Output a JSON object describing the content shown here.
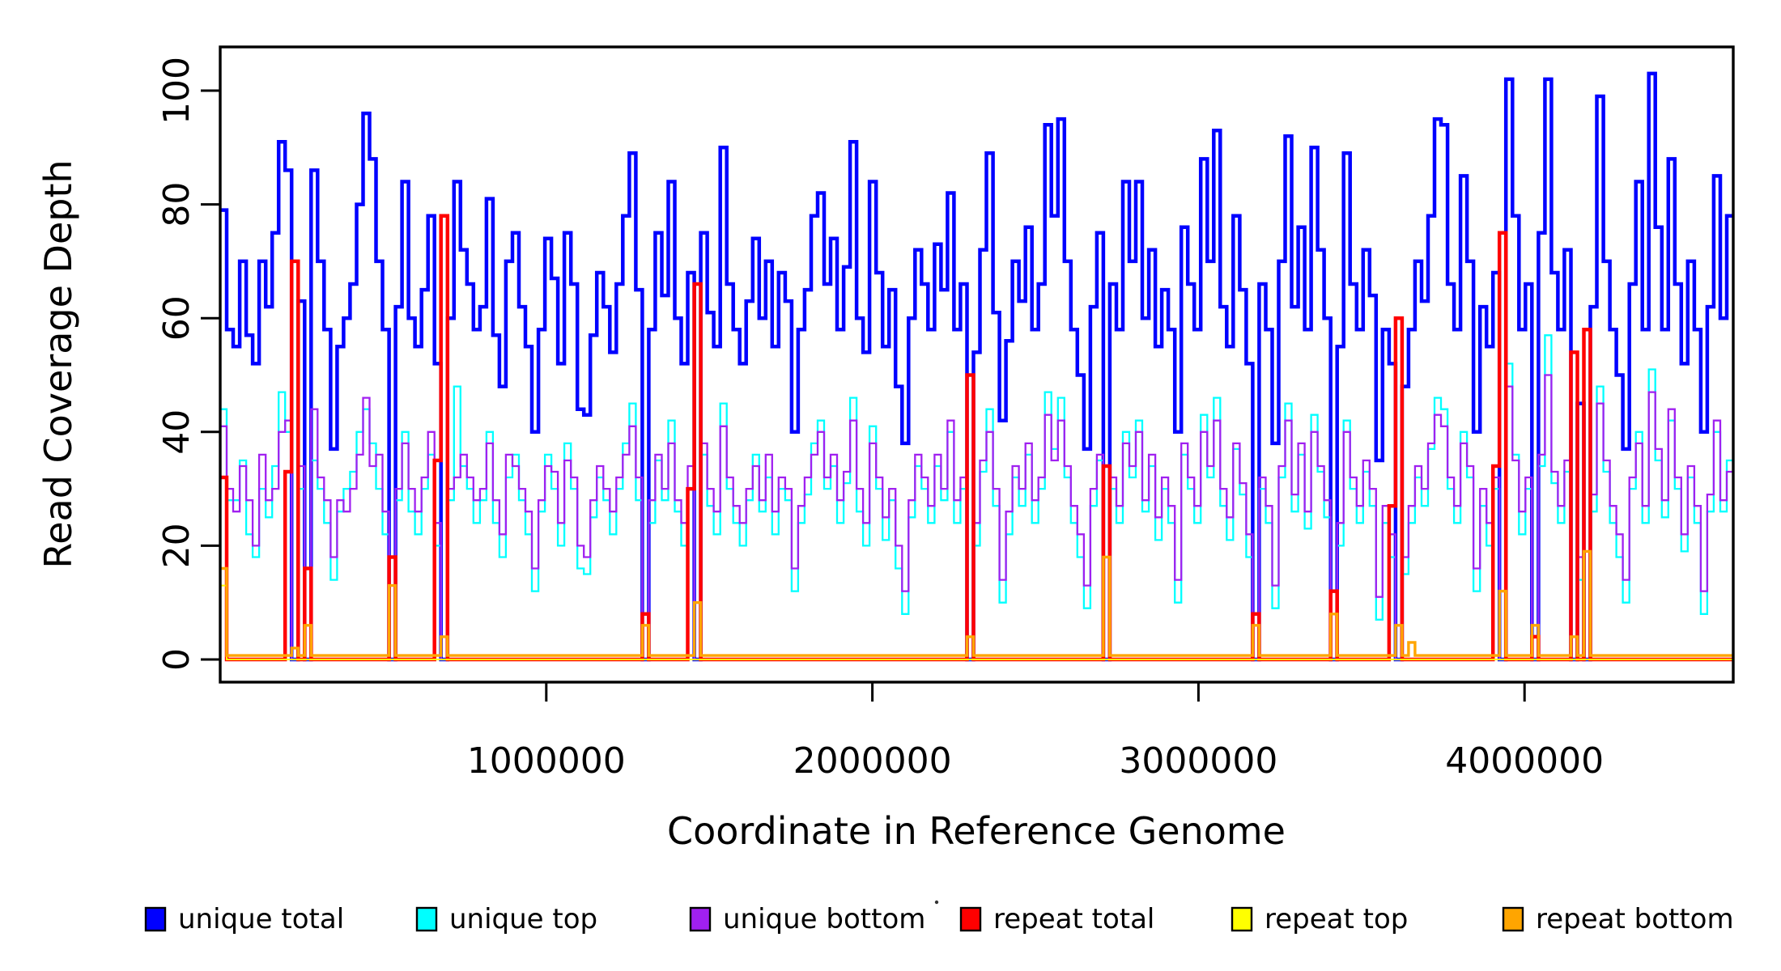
{
  "chart_data": {
    "type": "line",
    "subtype": "step-coverage",
    "title": "",
    "xlabel": "Coordinate in Reference Genome",
    "ylabel": "Read Coverage Depth",
    "xlim": [
      0,
      4640000
    ],
    "ylim": [
      0,
      100
    ],
    "grid": false,
    "legend_position": "bottom",
    "x_ticks": [
      1000000,
      2000000,
      3000000,
      4000000
    ],
    "x_tick_labels": [
      "1000000",
      "2000000",
      "3000000",
      "4000000"
    ],
    "y_ticks": [
      0,
      20,
      40,
      60,
      80,
      100
    ],
    "y_tick_labels": [
      "0",
      "20",
      "40",
      "60",
      "80",
      "100"
    ],
    "step_bp": 20000,
    "n_points": 233,
    "series": [
      {
        "name": "unique total",
        "color": "#0000FF",
        "width": 4.5,
        "values": [
          79,
          58,
          55,
          70,
          57,
          52,
          70,
          62,
          75,
          91,
          86,
          0,
          63,
          0,
          86,
          70,
          58,
          37,
          55,
          60,
          66,
          80,
          96,
          88,
          70,
          58,
          0,
          62,
          84,
          60,
          55,
          65,
          78,
          52,
          0,
          60,
          84,
          72,
          66,
          58,
          62,
          81,
          57,
          48,
          70,
          75,
          62,
          55,
          40,
          58,
          74,
          67,
          52,
          75,
          66,
          44,
          43,
          57,
          68,
          62,
          54,
          66,
          78,
          89,
          65,
          0,
          58,
          75,
          64,
          84,
          60,
          52,
          68,
          0,
          75,
          61,
          55,
          90,
          66,
          58,
          52,
          63,
          74,
          60,
          70,
          55,
          68,
          63,
          40,
          58,
          65,
          78,
          82,
          66,
          74,
          58,
          69,
          91,
          60,
          54,
          84,
          68,
          55,
          65,
          48,
          38,
          60,
          72,
          66,
          58,
          73,
          65,
          82,
          58,
          66,
          0,
          54,
          72,
          89,
          61,
          42,
          56,
          70,
          63,
          76,
          58,
          66,
          94,
          78,
          95,
          70,
          58,
          50,
          37,
          62,
          75,
          0,
          66,
          58,
          84,
          70,
          84,
          60,
          72,
          55,
          65,
          58,
          40,
          76,
          66,
          58,
          88,
          70,
          93,
          62,
          55,
          78,
          65,
          52,
          0,
          66,
          58,
          38,
          70,
          92,
          62,
          76,
          58,
          90,
          72,
          60,
          0,
          55,
          89,
          66,
          58,
          72,
          64,
          35,
          58,
          52,
          0,
          48,
          58,
          70,
          63,
          78,
          95,
          94,
          66,
          58,
          85,
          70,
          40,
          62,
          55,
          68,
          0,
          102,
          78,
          58,
          66,
          0,
          75,
          102,
          68,
          58,
          72,
          0,
          45,
          0,
          62,
          99,
          70,
          58,
          50,
          37,
          66,
          84,
          58,
          103,
          76,
          58,
          88,
          66,
          52,
          70,
          58,
          40,
          62,
          85,
          60,
          78
        ]
      },
      {
        "name": "unique top",
        "color": "#00FFFF",
        "width": 2.3,
        "values": [
          44,
          28,
          28,
          35,
          22,
          18,
          30,
          25,
          34,
          47,
          40,
          0,
          30,
          0,
          35,
          30,
          24,
          14,
          26,
          30,
          33,
          40,
          44,
          38,
          30,
          22,
          0,
          28,
          40,
          26,
          22,
          30,
          36,
          20,
          0,
          28,
          48,
          34,
          30,
          24,
          28,
          40,
          24,
          18,
          32,
          36,
          28,
          22,
          12,
          26,
          36,
          30,
          20,
          38,
          30,
          16,
          15,
          25,
          32,
          28,
          22,
          30,
          38,
          45,
          28,
          0,
          24,
          35,
          28,
          42,
          26,
          20,
          30,
          0,
          36,
          27,
          22,
          45,
          30,
          24,
          20,
          28,
          36,
          26,
          32,
          22,
          30,
          28,
          12,
          24,
          29,
          38,
          42,
          30,
          34,
          24,
          31,
          46,
          26,
          20,
          41,
          30,
          21,
          28,
          16,
          8,
          25,
          34,
          30,
          24,
          34,
          28,
          40,
          24,
          30,
          0,
          20,
          33,
          44,
          27,
          10,
          22,
          32,
          27,
          36,
          24,
          30,
          47,
          37,
          46,
          32,
          24,
          18,
          9,
          27,
          35,
          0,
          30,
          24,
          40,
          32,
          42,
          26,
          34,
          21,
          30,
          24,
          10,
          36,
          30,
          24,
          43,
          32,
          46,
          27,
          21,
          37,
          29,
          18,
          0,
          30,
          24,
          9,
          32,
          45,
          26,
          36,
          23,
          43,
          33,
          25,
          0,
          20,
          42,
          30,
          24,
          33,
          27,
          7,
          24,
          18,
          0,
          15,
          24,
          32,
          27,
          37,
          46,
          44,
          30,
          24,
          40,
          32,
          12,
          27,
          20,
          30,
          0,
          52,
          36,
          22,
          30,
          0,
          34,
          57,
          31,
          24,
          33,
          0,
          14,
          0,
          26,
          48,
          33,
          24,
          18,
          10,
          30,
          40,
          24,
          51,
          35,
          25,
          42,
          30,
          19,
          32,
          24,
          8,
          26,
          40,
          26,
          35
        ]
      },
      {
        "name": "unique bottom",
        "color": "#A020F0",
        "width": 2.3,
        "values": [
          41,
          30,
          26,
          34,
          28,
          20,
          36,
          28,
          30,
          40,
          42,
          0,
          34,
          0,
          44,
          32,
          28,
          18,
          28,
          26,
          30,
          36,
          46,
          34,
          36,
          26,
          0,
          30,
          38,
          30,
          26,
          32,
          40,
          24,
          0,
          30,
          32,
          36,
          32,
          28,
          30,
          38,
          28,
          22,
          36,
          34,
          30,
          26,
          16,
          28,
          34,
          33,
          24,
          35,
          32,
          20,
          18,
          28,
          34,
          30,
          26,
          32,
          36,
          41,
          32,
          0,
          28,
          36,
          30,
          38,
          28,
          24,
          34,
          0,
          38,
          30,
          26,
          41,
          32,
          27,
          24,
          30,
          34,
          28,
          36,
          26,
          32,
          30,
          16,
          27,
          32,
          36,
          40,
          32,
          36,
          28,
          33,
          42,
          30,
          24,
          38,
          32,
          25,
          30,
          20,
          12,
          28,
          36,
          32,
          27,
          36,
          30,
          42,
          28,
          32,
          0,
          24,
          35,
          40,
          30,
          14,
          26,
          34,
          30,
          38,
          28,
          32,
          43,
          35,
          42,
          34,
          27,
          22,
          13,
          30,
          36,
          0,
          32,
          27,
          38,
          34,
          40,
          28,
          36,
          25,
          32,
          27,
          14,
          38,
          32,
          27,
          40,
          34,
          42,
          30,
          25,
          38,
          31,
          22,
          0,
          32,
          27,
          13,
          34,
          42,
          29,
          38,
          26,
          40,
          34,
          28,
          0,
          24,
          40,
          32,
          27,
          35,
          30,
          11,
          27,
          22,
          0,
          18,
          27,
          34,
          30,
          38,
          43,
          41,
          32,
          27,
          38,
          34,
          16,
          30,
          24,
          32,
          0,
          48,
          35,
          26,
          32,
          0,
          36,
          50,
          33,
          27,
          35,
          0,
          18,
          0,
          29,
          45,
          35,
          27,
          22,
          14,
          32,
          38,
          27,
          47,
          37,
          28,
          44,
          32,
          22,
          34,
          27,
          12,
          29,
          42,
          28,
          33
        ]
      },
      {
        "name": "repeat total",
        "color": "#FF0000",
        "width": 4.5,
        "baseline": 0,
        "spikes": {
          "0": 32,
          "10": 33,
          "11": 70,
          "13": 16,
          "26": 18,
          "33": 35,
          "34": 78,
          "65": 8,
          "72": 30,
          "73": 66,
          "115": 50,
          "136": 34,
          "159": 8,
          "171": 12,
          "180": 27,
          "181": 60,
          "196": 34,
          "197": 75,
          "202": 4,
          "208": 54,
          "210": 58
        }
      },
      {
        "name": "repeat top",
        "color": "#FFFF00",
        "width": 2.0,
        "baseline": 0,
        "spikes": {
          "0": 13
        }
      },
      {
        "name": "repeat bottom",
        "color": "#FFA500",
        "width": 3.4,
        "baseline": 0.7,
        "spikes": {
          "0": 16,
          "11": 2,
          "13": 6,
          "26": 13,
          "34": 4,
          "65": 6,
          "73": 10,
          "115": 4,
          "136": 18,
          "159": 6,
          "171": 8,
          "181": 6,
          "183": 3,
          "197": 12,
          "202": 6,
          "208": 4,
          "210": 19
        }
      }
    ],
    "legend": [
      {
        "label": "unique total",
        "color": "#0000FF"
      },
      {
        "label": "unique top",
        "color": "#00FFFF"
      },
      {
        "label": "unique bottom",
        "color": "#A020F0"
      },
      {
        "label": "repeat total",
        "color": "#FF0000"
      },
      {
        "label": "repeat top",
        "color": "#FFFF00"
      },
      {
        "label": "repeat bottom",
        "color": "#FFA500"
      }
    ]
  },
  "colors": {
    "frame": "#000000",
    "text": "#000000",
    "background": "#ffffff",
    "stray_dot": "#333333"
  }
}
